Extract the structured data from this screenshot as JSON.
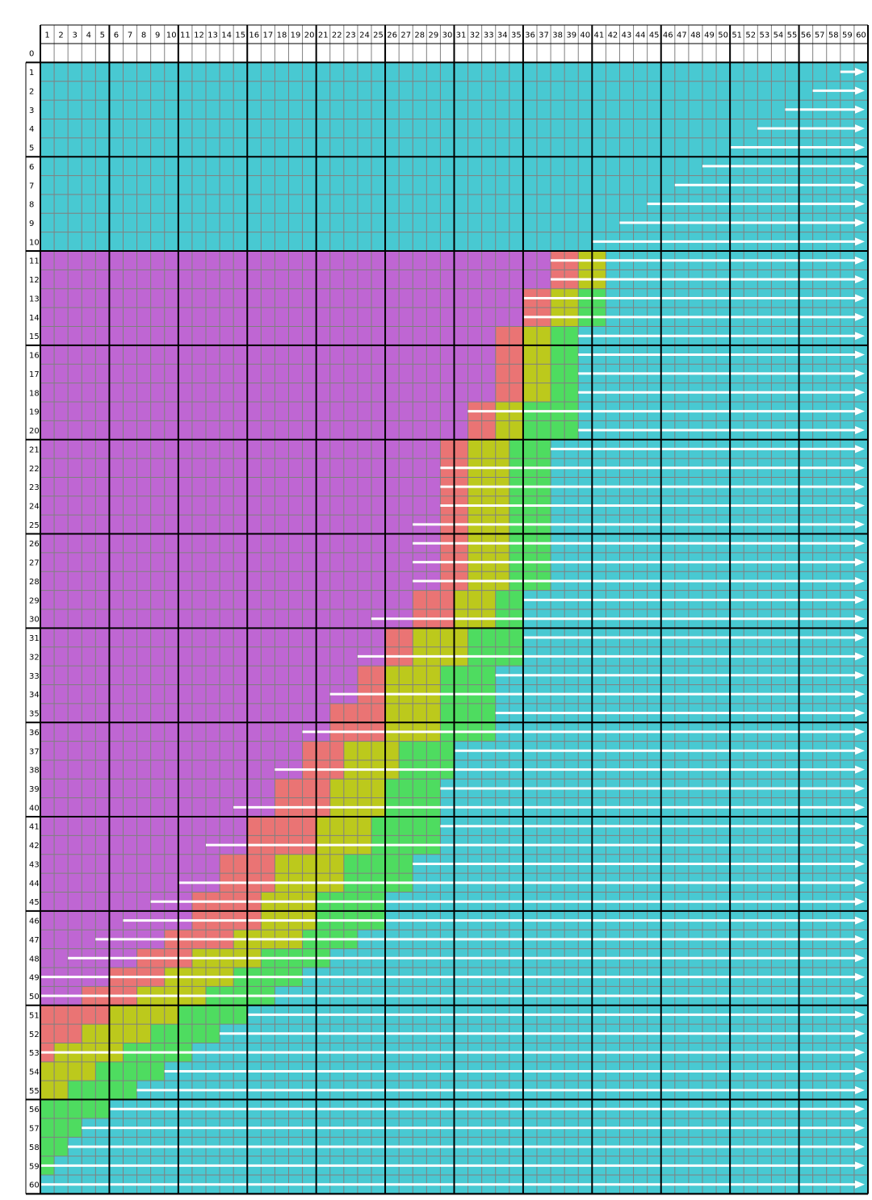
{
  "colors": {
    "background": "#ffffff",
    "teal": "#48c9d2",
    "purple": "#bf66d3",
    "red": "#ea7474",
    "olive": "#bcc91c",
    "green": "#4edc60",
    "thin_grid": "#808080",
    "thick_grid": "#000000",
    "arrow": "#ffffff"
  },
  "legend_map": {
    "T": "teal",
    "P": "purple",
    "R": "red",
    "O": "olive",
    "G": "green"
  },
  "grid": {
    "columns": 60,
    "rows": 60,
    "column_labels": [
      "1",
      "2",
      "3",
      "4",
      "5",
      "6",
      "7",
      "8",
      "9",
      "10",
      "11",
      "12",
      "13",
      "14",
      "15",
      "16",
      "17",
      "18",
      "19",
      "20",
      "21",
      "22",
      "23",
      "24",
      "25",
      "26",
      "27",
      "28",
      "29",
      "30",
      "31",
      "32",
      "33",
      "34",
      "35",
      "36",
      "37",
      "38",
      "39",
      "40",
      "41",
      "42",
      "43",
      "44",
      "45",
      "46",
      "47",
      "48",
      "49",
      "50",
      "51",
      "52",
      "53",
      "54",
      "55",
      "56",
      "57",
      "58",
      "59",
      "60"
    ],
    "row_labels": [
      "0",
      "1",
      "2",
      "3",
      "4",
      "5",
      "6",
      "7",
      "8",
      "9",
      "10",
      "11",
      "12",
      "13",
      "14",
      "15",
      "16",
      "17",
      "18",
      "19",
      "20",
      "21",
      "22",
      "23",
      "24",
      "25",
      "26",
      "27",
      "28",
      "29",
      "30",
      "31",
      "32",
      "33",
      "34",
      "35",
      "36",
      "37",
      "38",
      "39",
      "40",
      "41",
      "42",
      "43",
      "44",
      "45",
      "46",
      "47",
      "48",
      "49",
      "50",
      "51",
      "52",
      "53",
      "54",
      "55",
      "56",
      "57",
      "58",
      "59",
      "60"
    ],
    "thick_line_every": 5
  },
  "row_segments": {
    "1": [
      [
        "T",
        1,
        60
      ]
    ],
    "2": [
      [
        "T",
        1,
        60
      ]
    ],
    "3": [
      [
        "T",
        1,
        60
      ]
    ],
    "4": [
      [
        "T",
        1,
        60
      ]
    ],
    "5": [
      [
        "T",
        1,
        60
      ]
    ],
    "6": [
      [
        "T",
        1,
        60
      ]
    ],
    "7": [
      [
        "T",
        1,
        60
      ]
    ],
    "8": [
      [
        "T",
        1,
        60
      ]
    ],
    "9": [
      [
        "T",
        1,
        60
      ]
    ],
    "10": [
      [
        "T",
        1,
        60
      ]
    ],
    "11": [
      [
        "P",
        1,
        37
      ],
      [
        "R",
        38,
        39
      ],
      [
        "O",
        40,
        41
      ],
      [
        "T",
        42,
        60
      ]
    ],
    "12": [
      [
        "P",
        1,
        37
      ],
      [
        "R",
        38,
        39
      ],
      [
        "O",
        40,
        41
      ],
      [
        "T",
        42,
        60
      ]
    ],
    "13": [
      [
        "P",
        1,
        35
      ],
      [
        "R",
        36,
        37
      ],
      [
        "O",
        38,
        39
      ],
      [
        "G",
        40,
        41
      ],
      [
        "T",
        42,
        60
      ]
    ],
    "14": [
      [
        "P",
        1,
        35
      ],
      [
        "R",
        36,
        37
      ],
      [
        "O",
        38,
        39
      ],
      [
        "G",
        40,
        41
      ],
      [
        "T",
        42,
        60
      ]
    ],
    "15": [
      [
        "P",
        1,
        33
      ],
      [
        "R",
        34,
        35
      ],
      [
        "O",
        36,
        37
      ],
      [
        "G",
        38,
        39
      ],
      [
        "T",
        40,
        60
      ]
    ],
    "16": [
      [
        "P",
        1,
        33
      ],
      [
        "R",
        34,
        35
      ],
      [
        "O",
        36,
        37
      ],
      [
        "G",
        38,
        39
      ],
      [
        "T",
        40,
        60
      ]
    ],
    "17": [
      [
        "P",
        1,
        33
      ],
      [
        "R",
        34,
        35
      ],
      [
        "O",
        36,
        37
      ],
      [
        "G",
        38,
        39
      ],
      [
        "T",
        40,
        60
      ]
    ],
    "18": [
      [
        "P",
        1,
        33
      ],
      [
        "R",
        34,
        35
      ],
      [
        "O",
        36,
        37
      ],
      [
        "G",
        38,
        39
      ],
      [
        "T",
        40,
        60
      ]
    ],
    "19": [
      [
        "P",
        1,
        31
      ],
      [
        "R",
        32,
        33
      ],
      [
        "O",
        34,
        35
      ],
      [
        "G",
        36,
        39
      ],
      [
        "T",
        40,
        60
      ]
    ],
    "20": [
      [
        "P",
        1,
        31
      ],
      [
        "R",
        32,
        33
      ],
      [
        "O",
        34,
        35
      ],
      [
        "G",
        36,
        39
      ],
      [
        "T",
        40,
        60
      ]
    ],
    "21": [
      [
        "P",
        1,
        29
      ],
      [
        "R",
        30,
        31
      ],
      [
        "O",
        32,
        34
      ],
      [
        "G",
        35,
        37
      ],
      [
        "T",
        38,
        60
      ]
    ],
    "22": [
      [
        "P",
        1,
        29
      ],
      [
        "R",
        30,
        31
      ],
      [
        "O",
        32,
        34
      ],
      [
        "G",
        35,
        37
      ],
      [
        "T",
        38,
        60
      ]
    ],
    "23": [
      [
        "P",
        1,
        29
      ],
      [
        "R",
        30,
        31
      ],
      [
        "O",
        32,
        34
      ],
      [
        "G",
        35,
        37
      ],
      [
        "T",
        38,
        60
      ]
    ],
    "24": [
      [
        "P",
        1,
        29
      ],
      [
        "R",
        30,
        31
      ],
      [
        "O",
        32,
        34
      ],
      [
        "G",
        35,
        37
      ],
      [
        "T",
        38,
        60
      ]
    ],
    "25": [
      [
        "P",
        1,
        29
      ],
      [
        "R",
        30,
        31
      ],
      [
        "O",
        32,
        34
      ],
      [
        "G",
        35,
        37
      ],
      [
        "T",
        38,
        60
      ]
    ],
    "26": [
      [
        "P",
        1,
        29
      ],
      [
        "R",
        30,
        31
      ],
      [
        "O",
        32,
        34
      ],
      [
        "G",
        35,
        37
      ],
      [
        "T",
        38,
        60
      ]
    ],
    "27": [
      [
        "P",
        1,
        29
      ],
      [
        "R",
        30,
        31
      ],
      [
        "O",
        32,
        34
      ],
      [
        "G",
        35,
        37
      ],
      [
        "T",
        38,
        60
      ]
    ],
    "28": [
      [
        "P",
        1,
        29
      ],
      [
        "R",
        30,
        31
      ],
      [
        "O",
        32,
        34
      ],
      [
        "G",
        35,
        37
      ],
      [
        "T",
        38,
        60
      ]
    ],
    "29": [
      [
        "P",
        1,
        27
      ],
      [
        "R",
        28,
        30
      ],
      [
        "O",
        31,
        33
      ],
      [
        "G",
        34,
        35
      ],
      [
        "T",
        36,
        60
      ]
    ],
    "30": [
      [
        "P",
        1,
        27
      ],
      [
        "R",
        28,
        30
      ],
      [
        "O",
        31,
        33
      ],
      [
        "G",
        34,
        35
      ],
      [
        "T",
        36,
        60
      ]
    ],
    "31": [
      [
        "P",
        1,
        25
      ],
      [
        "R",
        26,
        27
      ],
      [
        "O",
        28,
        31
      ],
      [
        "G",
        32,
        35
      ],
      [
        "T",
        36,
        60
      ]
    ],
    "32": [
      [
        "P",
        1,
        25
      ],
      [
        "R",
        26,
        27
      ],
      [
        "O",
        28,
        31
      ],
      [
        "G",
        32,
        35
      ],
      [
        "T",
        36,
        60
      ]
    ],
    "33": [
      [
        "P",
        1,
        23
      ],
      [
        "R",
        24,
        25
      ],
      [
        "O",
        26,
        29
      ],
      [
        "G",
        30,
        33
      ],
      [
        "T",
        34,
        60
      ]
    ],
    "34": [
      [
        "P",
        1,
        23
      ],
      [
        "R",
        24,
        25
      ],
      [
        "O",
        26,
        29
      ],
      [
        "G",
        30,
        33
      ],
      [
        "T",
        34,
        60
      ]
    ],
    "35": [
      [
        "P",
        1,
        21
      ],
      [
        "R",
        22,
        25
      ],
      [
        "O",
        26,
        29
      ],
      [
        "G",
        30,
        33
      ],
      [
        "T",
        34,
        60
      ]
    ],
    "36": [
      [
        "P",
        1,
        21
      ],
      [
        "R",
        22,
        25
      ],
      [
        "O",
        26,
        29
      ],
      [
        "G",
        30,
        33
      ],
      [
        "T",
        34,
        60
      ]
    ],
    "37": [
      [
        "P",
        1,
        19
      ],
      [
        "R",
        20,
        22
      ],
      [
        "O",
        23,
        26
      ],
      [
        "G",
        27,
        30
      ],
      [
        "T",
        31,
        60
      ]
    ],
    "38": [
      [
        "P",
        1,
        19
      ],
      [
        "R",
        20,
        22
      ],
      [
        "O",
        23,
        26
      ],
      [
        "G",
        27,
        30
      ],
      [
        "T",
        31,
        60
      ]
    ],
    "39": [
      [
        "P",
        1,
        17
      ],
      [
        "R",
        18,
        21
      ],
      [
        "O",
        22,
        25
      ],
      [
        "G",
        26,
        29
      ],
      [
        "T",
        30,
        60
      ]
    ],
    "40": [
      [
        "P",
        1,
        17
      ],
      [
        "R",
        18,
        21
      ],
      [
        "O",
        22,
        25
      ],
      [
        "G",
        26,
        29
      ],
      [
        "T",
        30,
        60
      ]
    ],
    "41": [
      [
        "P",
        1,
        15
      ],
      [
        "R",
        16,
        20
      ],
      [
        "O",
        21,
        24
      ],
      [
        "G",
        25,
        29
      ],
      [
        "T",
        30,
        60
      ]
    ],
    "42": [
      [
        "P",
        1,
        15
      ],
      [
        "R",
        16,
        20
      ],
      [
        "O",
        21,
        24
      ],
      [
        "G",
        25,
        29
      ],
      [
        "T",
        30,
        60
      ]
    ],
    "43": [
      [
        "P",
        1,
        13
      ],
      [
        "R",
        14,
        17
      ],
      [
        "O",
        18,
        22
      ],
      [
        "G",
        23,
        27
      ],
      [
        "T",
        28,
        60
      ]
    ],
    "44": [
      [
        "P",
        1,
        13
      ],
      [
        "R",
        14,
        17
      ],
      [
        "O",
        18,
        22
      ],
      [
        "G",
        23,
        27
      ],
      [
        "T",
        28,
        60
      ]
    ],
    "45": [
      [
        "P",
        1,
        11
      ],
      [
        "R",
        12,
        16
      ],
      [
        "O",
        17,
        20
      ],
      [
        "G",
        21,
        25
      ],
      [
        "T",
        26,
        60
      ]
    ],
    "46": [
      [
        "P",
        1,
        11
      ],
      [
        "R",
        12,
        16
      ],
      [
        "O",
        17,
        20
      ],
      [
        "G",
        21,
        25
      ],
      [
        "T",
        26,
        60
      ]
    ],
    "47": [
      [
        "P",
        1,
        9
      ],
      [
        "R",
        10,
        14
      ],
      [
        "O",
        15,
        19
      ],
      [
        "G",
        20,
        23
      ],
      [
        "T",
        24,
        60
      ]
    ],
    "48": [
      [
        "P",
        1,
        7
      ],
      [
        "R",
        8,
        11
      ],
      [
        "O",
        12,
        16
      ],
      [
        "G",
        17,
        21
      ],
      [
        "T",
        22,
        60
      ]
    ],
    "49": [
      [
        "P",
        1,
        5
      ],
      [
        "R",
        6,
        9
      ],
      [
        "O",
        10,
        14
      ],
      [
        "G",
        15,
        19
      ],
      [
        "T",
        20,
        60
      ]
    ],
    "50": [
      [
        "P",
        1,
        3
      ],
      [
        "R",
        4,
        7
      ],
      [
        "O",
        8,
        12
      ],
      [
        "G",
        13,
        17
      ],
      [
        "T",
        18,
        60
      ]
    ],
    "51": [
      [
        "R",
        1,
        5
      ],
      [
        "O",
        6,
        10
      ],
      [
        "G",
        11,
        15
      ],
      [
        "T",
        16,
        60
      ]
    ],
    "52": [
      [
        "R",
        1,
        3
      ],
      [
        "O",
        4,
        8
      ],
      [
        "G",
        9,
        13
      ],
      [
        "T",
        14,
        60
      ]
    ],
    "53": [
      [
        "R",
        1,
        1
      ],
      [
        "O",
        2,
        6
      ],
      [
        "G",
        7,
        11
      ],
      [
        "T",
        12,
        60
      ]
    ],
    "54": [
      [
        "O",
        1,
        4
      ],
      [
        "G",
        5,
        9
      ],
      [
        "T",
        10,
        60
      ]
    ],
    "55": [
      [
        "O",
        1,
        2
      ],
      [
        "G",
        3,
        7
      ],
      [
        "T",
        8,
        60
      ]
    ],
    "56": [
      [
        "G",
        1,
        5
      ],
      [
        "T",
        6,
        60
      ]
    ],
    "57": [
      [
        "G",
        1,
        3
      ],
      [
        "T",
        4,
        60
      ]
    ],
    "58": [
      [
        "G",
        1,
        2
      ],
      [
        "T",
        3,
        60
      ]
    ],
    "59": [
      [
        "G",
        1,
        1
      ],
      [
        "T",
        2,
        60
      ]
    ],
    "60": [
      [
        "T",
        1,
        60
      ]
    ]
  },
  "arrows": [
    {
      "row": 1,
      "from": 59
    },
    {
      "row": 2,
      "from": 57
    },
    {
      "row": 3,
      "from": 55
    },
    {
      "row": 4,
      "from": 53
    },
    {
      "row": 5,
      "from": 51
    },
    {
      "row": 6,
      "from": 49
    },
    {
      "row": 7,
      "from": 47
    },
    {
      "row": 8,
      "from": 45
    },
    {
      "row": 9,
      "from": 43
    },
    {
      "row": 10,
      "from": 41
    },
    {
      "row": 11,
      "from": 38
    },
    {
      "row": 12,
      "from": 38
    },
    {
      "row": 13,
      "from": 36
    },
    {
      "row": 14,
      "from": 36
    },
    {
      "row": 15,
      "from": 40
    },
    {
      "row": 16,
      "from": 40
    },
    {
      "row": 17,
      "from": 40
    },
    {
      "row": 18,
      "from": 40
    },
    {
      "row": 19,
      "from": 32
    },
    {
      "row": 20,
      "from": 40
    },
    {
      "row": 21,
      "from": 38
    },
    {
      "row": 22,
      "from": 30
    },
    {
      "row": 23,
      "from": 30
    },
    {
      "row": 24,
      "from": 30
    },
    {
      "row": 25,
      "from": 28
    },
    {
      "row": 26,
      "from": 28
    },
    {
      "row": 27,
      "from": 28
    },
    {
      "row": 28,
      "from": 28
    },
    {
      "row": 29,
      "from": 36
    },
    {
      "row": 30,
      "from": 25
    },
    {
      "row": 31,
      "from": 36
    },
    {
      "row": 32,
      "from": 24
    },
    {
      "row": 33,
      "from": 34
    },
    {
      "row": 34,
      "from": 22
    },
    {
      "row": 35,
      "from": 34
    },
    {
      "row": 36,
      "from": 20
    },
    {
      "row": 37,
      "from": 31
    },
    {
      "row": 38,
      "from": 18
    },
    {
      "row": 39,
      "from": 30
    },
    {
      "row": 40,
      "from": 15
    },
    {
      "row": 41,
      "from": 30
    },
    {
      "row": 42,
      "from": 13
    },
    {
      "row": 43,
      "from": 28
    },
    {
      "row": 44,
      "from": 11
    },
    {
      "row": 45,
      "from": 9
    },
    {
      "row": 46,
      "from": 7
    },
    {
      "row": 47,
      "from": 5
    },
    {
      "row": 48,
      "from": 3
    },
    {
      "row": 49,
      "from": 1
    },
    {
      "row": 50,
      "from": 1
    },
    {
      "row": 51,
      "from": 16
    },
    {
      "row": 52,
      "from": 14
    },
    {
      "row": 53,
      "from": 1
    },
    {
      "row": 54,
      "from": 10
    },
    {
      "row": 55,
      "from": 8
    },
    {
      "row": 56,
      "from": 6
    },
    {
      "row": 57,
      "from": 4
    },
    {
      "row": 58,
      "from": 3
    },
    {
      "row": 59,
      "from": 1
    },
    {
      "row": 60,
      "from": 1
    }
  ]
}
